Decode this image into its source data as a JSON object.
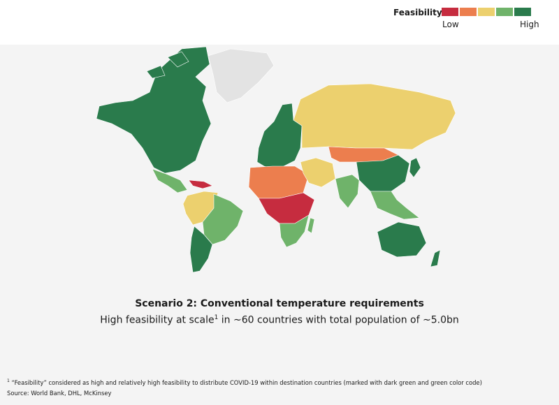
{
  "legend": {
    "title": "Feasibility",
    "low_label": "Low",
    "high_label": "High",
    "scale": [
      {
        "level": "low",
        "color": "#c62c3f"
      },
      {
        "level": "low-medium",
        "color": "#ec7e4e"
      },
      {
        "level": "medium",
        "color": "#ecd06e"
      },
      {
        "level": "medium-high",
        "color": "#6fb36a"
      },
      {
        "level": "high",
        "color": "#2a7b4c"
      }
    ],
    "no_data_color": "#e3e3e3"
  },
  "map": {
    "regions": [
      {
        "name": "North America",
        "feasibility": "high"
      },
      {
        "name": "Greenland",
        "feasibility": "no-data"
      },
      {
        "name": "Mexico",
        "feasibility": "medium-high"
      },
      {
        "name": "Caribbean",
        "feasibility": "low"
      },
      {
        "name": "Northern South America",
        "feasibility": "medium"
      },
      {
        "name": "Brazil",
        "feasibility": "medium-high"
      },
      {
        "name": "Southern South America",
        "feasibility": "high"
      },
      {
        "name": "Europe",
        "feasibility": "high"
      },
      {
        "name": "Russia",
        "feasibility": "medium"
      },
      {
        "name": "North Africa",
        "feasibility": "low-medium"
      },
      {
        "name": "Central Africa",
        "feasibility": "low"
      },
      {
        "name": "Southern Africa",
        "feasibility": "medium-high"
      },
      {
        "name": "Middle East",
        "feasibility": "medium"
      },
      {
        "name": "Central Asia",
        "feasibility": "low-medium"
      },
      {
        "name": "China",
        "feasibility": "high"
      },
      {
        "name": "India",
        "feasibility": "medium-high"
      },
      {
        "name": "Southeast Asia",
        "feasibility": "medium-high"
      },
      {
        "name": "Japan",
        "feasibility": "high"
      },
      {
        "name": "Australia",
        "feasibility": "high"
      },
      {
        "name": "New Zealand",
        "feasibility": "high"
      }
    ]
  },
  "title": "Scenario 2: Conventional temperature requirements",
  "subtitle": {
    "pre": "High feasibility at scale",
    "sup": "1",
    "post": " in ~60 countries with total population of ~5.0bn"
  },
  "footnote": {
    "sup": "1",
    "text": " “Feasibility” considered as high and relatively high feasibility to distribute COVID-19 within destination countries (marked with dark green and green color code)"
  },
  "source": "Source: World Bank, DHL, McKinsey"
}
